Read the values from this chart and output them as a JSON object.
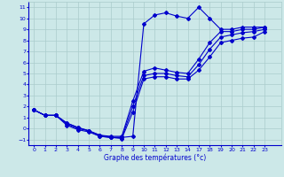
{
  "title": "Graphe des températures (°c)",
  "bg_color": "#cce8e8",
  "grid_color": "#aacccc",
  "line_color": "#0000cc",
  "xlim": [
    -0.5,
    22.5
  ],
  "ylim": [
    -1.5,
    11.5
  ],
  "x_labels": [
    "0",
    "1",
    "2",
    "3",
    "4",
    "5",
    "6",
    "7",
    "8",
    "9",
    "10",
    "11",
    "12",
    "13",
    "14",
    "17",
    "18",
    "19",
    "20",
    "21",
    "22",
    "23"
  ],
  "yticks": [
    -1,
    0,
    1,
    2,
    3,
    4,
    5,
    6,
    7,
    8,
    9,
    10,
    11
  ],
  "line1_y": [
    1.7,
    1.2,
    1.2,
    0.5,
    0.1,
    -0.2,
    -0.7,
    -0.8,
    -0.8,
    -0.7,
    9.5,
    10.3,
    10.5,
    10.2,
    10.0,
    11.0,
    10.0,
    9.0,
    9.0,
    9.2,
    9.2,
    9.2
  ],
  "line2_y": [
    1.7,
    1.2,
    1.2,
    0.5,
    0.1,
    -0.2,
    -0.6,
    -0.7,
    -0.7,
    2.5,
    5.2,
    5.5,
    5.3,
    5.1,
    5.0,
    6.3,
    7.8,
    8.8,
    8.8,
    9.0,
    9.0,
    9.2
  ],
  "line3_y": [
    1.7,
    1.2,
    1.2,
    0.4,
    0.0,
    -0.2,
    -0.6,
    -0.8,
    -0.8,
    2.0,
    4.8,
    5.0,
    5.0,
    4.8,
    4.7,
    5.8,
    7.2,
    8.3,
    8.5,
    8.7,
    8.8,
    9.0
  ],
  "line4_y": [
    1.7,
    1.2,
    1.2,
    0.3,
    -0.1,
    -0.3,
    -0.7,
    -0.8,
    -0.9,
    1.5,
    4.5,
    4.7,
    4.7,
    4.5,
    4.5,
    5.3,
    6.5,
    7.8,
    8.0,
    8.2,
    8.3,
    8.8
  ]
}
